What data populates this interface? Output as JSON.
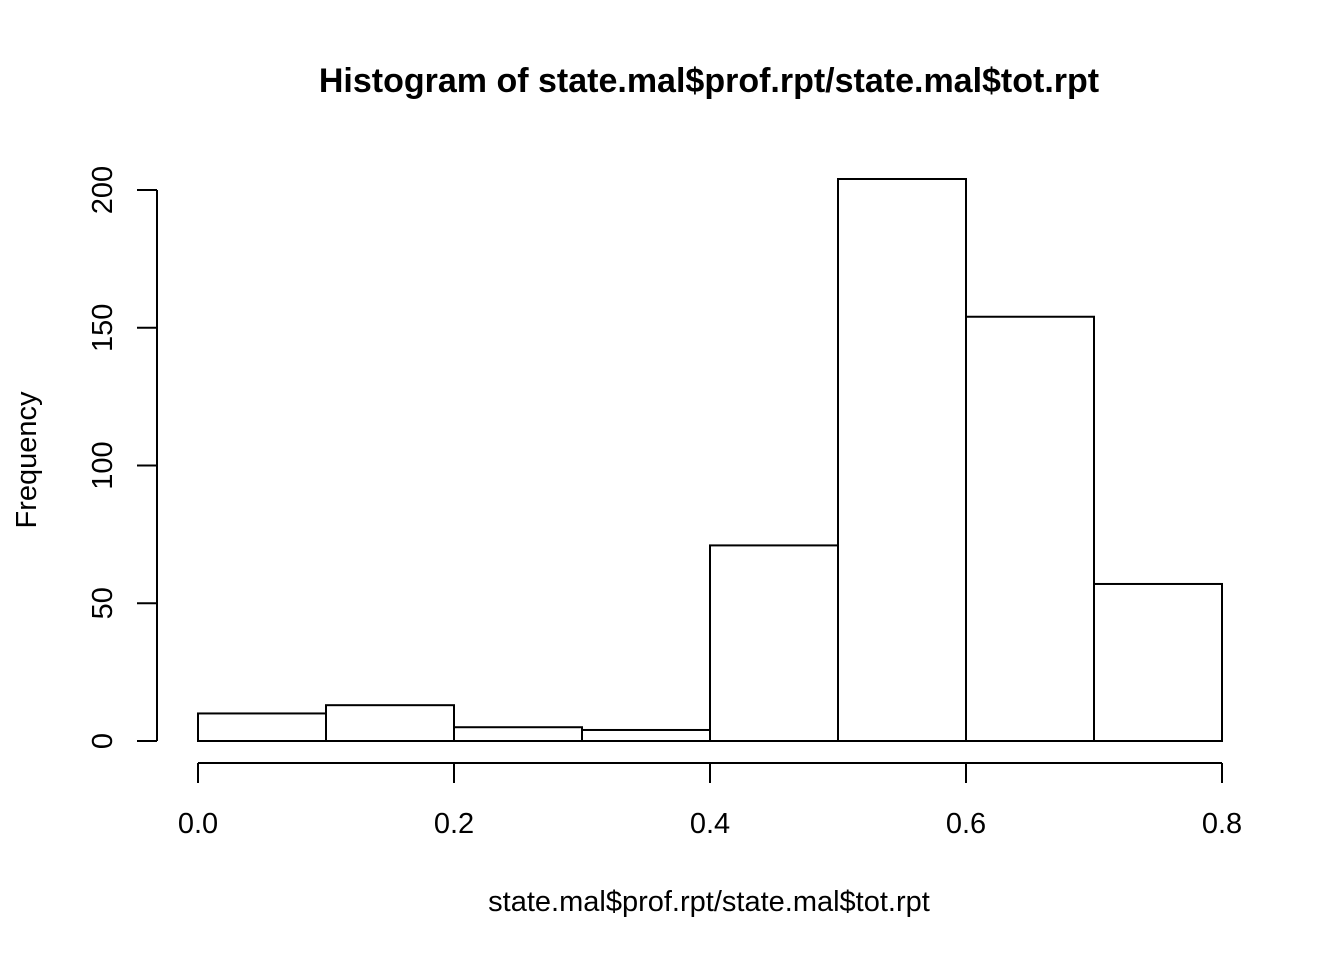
{
  "chart_data": {
    "type": "bar",
    "title": "Histogram of state.mal$prof.rpt/state.mal$tot.rpt",
    "xlabel": "state.mal$prof.rpt/state.mal$tot.rpt",
    "ylabel": "Frequency",
    "bins": [
      {
        "from": 0.0,
        "to": 0.1,
        "count": 10
      },
      {
        "from": 0.1,
        "to": 0.2,
        "count": 13
      },
      {
        "from": 0.2,
        "to": 0.3,
        "count": 5
      },
      {
        "from": 0.3,
        "to": 0.4,
        "count": 4
      },
      {
        "from": 0.4,
        "to": 0.5,
        "count": 71
      },
      {
        "from": 0.5,
        "to": 0.6,
        "count": 204
      },
      {
        "from": 0.6,
        "to": 0.7,
        "count": 154
      },
      {
        "from": 0.7,
        "to": 0.8,
        "count": 57
      }
    ],
    "xlim": [
      0.0,
      0.8
    ],
    "ylim": [
      0,
      204
    ],
    "xticks": [
      0.0,
      0.2,
      0.4,
      0.6,
      0.8
    ],
    "xtick_labels": [
      "0.0",
      "0.2",
      "0.4",
      "0.6",
      "0.8"
    ],
    "yticks": [
      0,
      50,
      100,
      150,
      200
    ],
    "ytick_labels": [
      "0",
      "50",
      "100",
      "150",
      "200"
    ],
    "grid": false,
    "legend": "none",
    "colors": {
      "bar_fill": "#ffffff",
      "bar_stroke": "#000000",
      "background": "#ffffff"
    }
  }
}
